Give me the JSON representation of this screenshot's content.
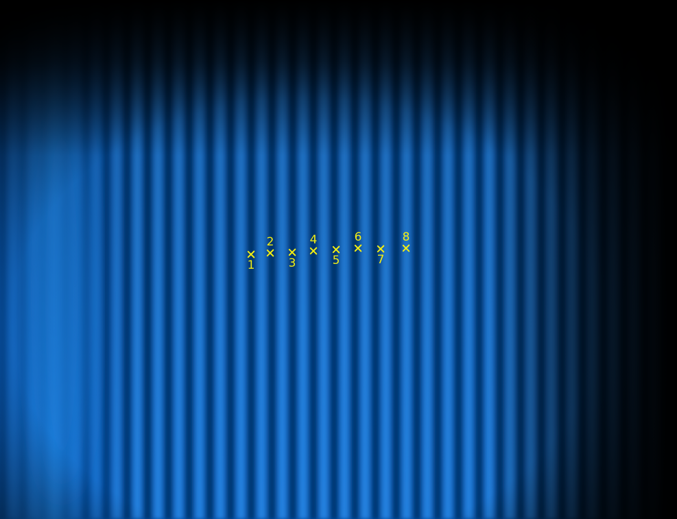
{
  "image": {
    "subject": "",
    "colors": {
      "background": "#000000",
      "fringe_bright": "#1e7fe6",
      "fringe_dark": "#023a7a",
      "marker": "#f2ee14"
    }
  },
  "markers": [
    {
      "label": "1",
      "label_position": "below"
    },
    {
      "label": "2",
      "label_position": "above"
    },
    {
      "label": "3",
      "label_position": "below"
    },
    {
      "label": "4",
      "label_position": "above"
    },
    {
      "label": "5",
      "label_position": "below"
    },
    {
      "label": "6",
      "label_position": "above"
    },
    {
      "label": "7",
      "label_position": "below"
    },
    {
      "label": "8",
      "label_position": "above"
    }
  ]
}
